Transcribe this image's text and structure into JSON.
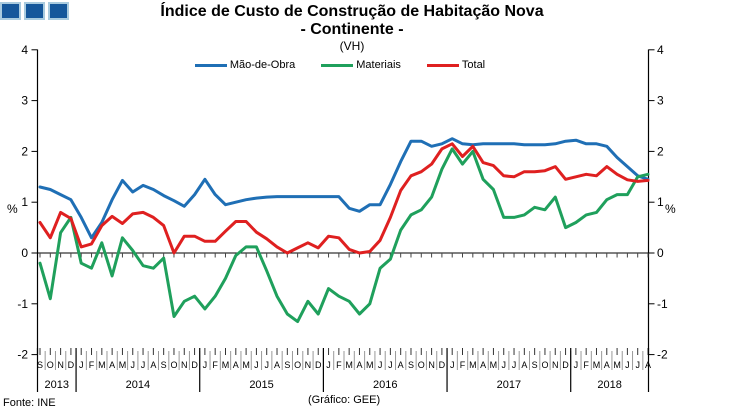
{
  "header": {
    "title": "Índice de Custo de Construção de Habitação Nova",
    "subtitle": "- Continente -",
    "unit_label": "(VH)"
  },
  "logo": {
    "name": "three-blue-squares-logo",
    "fill": "#15579B",
    "border": "#A9CBDF"
  },
  "legend": [
    {
      "label": "Mão-de-Obra",
      "color": "#1F6FB5"
    },
    {
      "label": "Materiais",
      "color": "#1FA05C"
    },
    {
      "label": "Total",
      "color": "#DF2020"
    }
  ],
  "footer": {
    "source": "Fonte: INE",
    "credit": "(Gráfico: GEE)"
  },
  "chart_data": {
    "type": "line",
    "title": "Índice de Custo de Construção de Habitação Nova - Continente - (VH)",
    "ylabel": "%",
    "ylabel_right": "%",
    "ylim": [
      -2,
      4
    ],
    "yticks": [
      4,
      3,
      2,
      1,
      0,
      -1,
      -2
    ],
    "grid": "zero-line-only",
    "legend_position": "top",
    "x_groups": [
      {
        "year": "2013",
        "months": [
          "S",
          "O",
          "N",
          "D"
        ]
      },
      {
        "year": "2014",
        "months": [
          "J",
          "F",
          "M",
          "A",
          "M",
          "J",
          "J",
          "A",
          "S",
          "O",
          "N",
          "D"
        ]
      },
      {
        "year": "2015",
        "months": [
          "J",
          "F",
          "M",
          "A",
          "M",
          "J",
          "J",
          "A",
          "S",
          "O",
          "N",
          "D"
        ]
      },
      {
        "year": "2016",
        "months": [
          "J",
          "F",
          "M",
          "A",
          "M",
          "J",
          "J",
          "A",
          "S",
          "O",
          "N",
          "D"
        ]
      },
      {
        "year": "2017",
        "months": [
          "J",
          "F",
          "M",
          "A",
          "M",
          "J",
          "J",
          "A",
          "S",
          "O",
          "N",
          "D"
        ]
      },
      {
        "year": "2018",
        "months": [
          "J",
          "F",
          "M",
          "A",
          "M",
          "J",
          "J",
          "A"
        ]
      }
    ],
    "series": [
      {
        "name": "Mão-de-Obra",
        "color": "#1F6FB5",
        "values": [
          1.3,
          1.25,
          1.15,
          1.05,
          0.7,
          0.3,
          0.6,
          1.05,
          1.43,
          1.2,
          1.33,
          1.25,
          1.13,
          1.03,
          0.92,
          1.15,
          1.45,
          1.15,
          0.95,
          1.0,
          1.05,
          1.08,
          1.1,
          1.11,
          1.11,
          1.11,
          1.11,
          1.11,
          1.11,
          1.11,
          0.88,
          0.82,
          0.95,
          0.95,
          1.35,
          1.8,
          2.2,
          2.2,
          2.1,
          2.15,
          2.25,
          2.15,
          2.13,
          2.15,
          2.15,
          2.15,
          2.15,
          2.13,
          2.13,
          2.13,
          2.15,
          2.2,
          2.22,
          2.15,
          2.15,
          2.1,
          1.88,
          1.7,
          1.52,
          1.45
        ]
      },
      {
        "name": "Materiais",
        "color": "#1FA05C",
        "values": [
          -0.2,
          -0.9,
          0.4,
          0.7,
          -0.2,
          -0.3,
          0.2,
          -0.45,
          0.3,
          0.05,
          -0.25,
          -0.3,
          -0.1,
          -1.25,
          -0.95,
          -0.85,
          -1.1,
          -0.85,
          -0.5,
          -0.05,
          0.12,
          0.12,
          -0.35,
          -0.85,
          -1.2,
          -1.35,
          -0.95,
          -1.2,
          -0.7,
          -0.85,
          -0.95,
          -1.2,
          -1.0,
          -0.3,
          -0.12,
          0.45,
          0.75,
          0.85,
          1.1,
          1.65,
          2.05,
          1.75,
          2.0,
          1.45,
          1.25,
          0.7,
          0.7,
          0.75,
          0.9,
          0.85,
          1.1,
          0.5,
          0.6,
          0.75,
          0.8,
          1.05,
          1.15,
          1.15,
          1.5,
          1.55
        ]
      },
      {
        "name": "Total",
        "color": "#DF2020",
        "values": [
          0.6,
          0.3,
          0.8,
          0.68,
          0.12,
          0.18,
          0.54,
          0.72,
          0.58,
          0.77,
          0.8,
          0.7,
          0.54,
          0.0,
          0.33,
          0.33,
          0.23,
          0.23,
          0.43,
          0.62,
          0.62,
          0.41,
          0.28,
          0.12,
          0.0,
          0.1,
          0.2,
          0.1,
          0.33,
          0.3,
          0.07,
          0.0,
          0.03,
          0.25,
          0.7,
          1.23,
          1.52,
          1.6,
          1.75,
          2.05,
          2.15,
          1.9,
          2.1,
          1.78,
          1.72,
          1.52,
          1.5,
          1.6,
          1.6,
          1.62,
          1.7,
          1.45,
          1.5,
          1.55,
          1.52,
          1.7,
          1.55,
          1.44,
          1.41,
          1.43
        ]
      }
    ]
  }
}
